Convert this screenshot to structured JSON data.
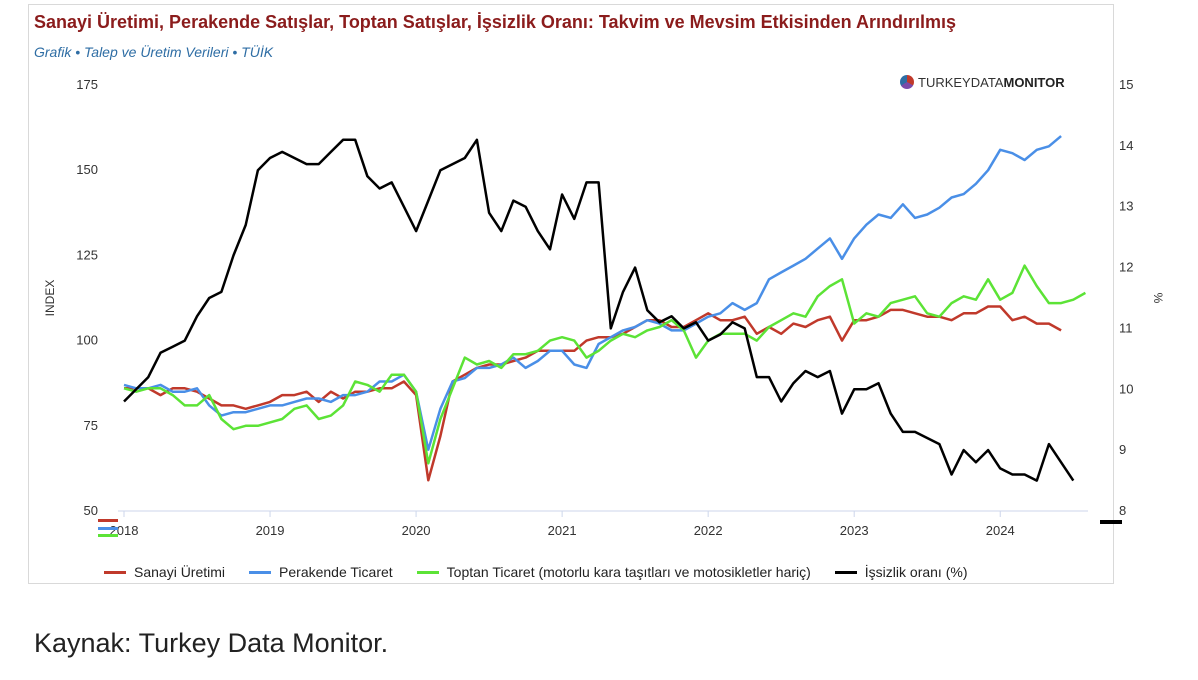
{
  "header": {
    "title": "Sanayi Üretimi, Perakende Satışlar, Toptan Satışlar, İşsizlik Oranı: Takvim ve Mevsim Etkisinden Arındırılmış",
    "subtitle": "Grafik • Talep ve Üretim Verileri • TÜİK"
  },
  "brand": {
    "part1": "TURKEYDATA",
    "part2": "MONITOR",
    "icon": "globe-logo-icon"
  },
  "source": "Kaynak: Turkey Data Monitor.",
  "chart_data": {
    "type": "line",
    "ylabel": "INDEX",
    "ylabel_right": "%",
    "ylim": [
      50,
      175
    ],
    "ylim_right": [
      8,
      15
    ],
    "yticks": [
      "175",
      "150",
      "125",
      "100",
      "75",
      "50"
    ],
    "yticks_right": [
      "15",
      "14",
      "13",
      "12",
      "11",
      "10",
      "9",
      "8"
    ],
    "xticks": [
      "2018",
      "2019",
      "2020",
      "2021",
      "2022",
      "2023",
      "2024"
    ],
    "x_start": "2018-01",
    "legend_position": "bottom",
    "grid": false,
    "series": [
      {
        "name": "Sanayi Üretimi",
        "axis": "left",
        "color": "#c0392b",
        "values": [
          86,
          86,
          86,
          84,
          86,
          86,
          85,
          83,
          81,
          81,
          80,
          81,
          82,
          84,
          84,
          85,
          82,
          85,
          83,
          85,
          85,
          86,
          86,
          88,
          84,
          59,
          72,
          88,
          90,
          92,
          93,
          93,
          94,
          95,
          97,
          97,
          97,
          97,
          100,
          101,
          101,
          102,
          104,
          106,
          106,
          104,
          104,
          106,
          108,
          106,
          106,
          107,
          102,
          104,
          102,
          105,
          104,
          106,
          107,
          100,
          106,
          106,
          107,
          109,
          109,
          108,
          107,
          107,
          106,
          108,
          108,
          110,
          110,
          106,
          107,
          105,
          105,
          103
        ]
      },
      {
        "name": "Perakende Ticaret",
        "axis": "left",
        "color": "#4a8fe7",
        "values": [
          87,
          86,
          86,
          87,
          85,
          85,
          86,
          81,
          78,
          79,
          79,
          80,
          81,
          81,
          82,
          83,
          83,
          82,
          84,
          84,
          85,
          88,
          88,
          90,
          85,
          68,
          80,
          88,
          89,
          92,
          92,
          93,
          95,
          92,
          94,
          97,
          97,
          93,
          92,
          99,
          101,
          103,
          104,
          106,
          105,
          103,
          103,
          105,
          107,
          108,
          111,
          109,
          111,
          118,
          120,
          122,
          124,
          127,
          130,
          124,
          130,
          134,
          137,
          136,
          140,
          136,
          137,
          139,
          142,
          143,
          146,
          150,
          156,
          155,
          153,
          156,
          157,
          160
        ]
      },
      {
        "name": "Toptan Ticaret (motorlu kara taşıtları ve motosikletler hariç)",
        "axis": "left",
        "color": "#5ce336",
        "values": [
          86,
          85,
          86,
          86,
          84,
          81,
          81,
          84,
          77,
          74,
          75,
          75,
          76,
          77,
          80,
          81,
          77,
          78,
          81,
          88,
          87,
          85,
          90,
          90,
          85,
          64,
          77,
          86,
          95,
          93,
          94,
          92,
          96,
          96,
          97,
          100,
          101,
          100,
          95,
          97,
          100,
          102,
          101,
          103,
          104,
          106,
          103,
          95,
          100,
          102,
          102,
          102,
          100,
          104,
          106,
          108,
          107,
          113,
          116,
          118,
          105,
          108,
          107,
          111,
          112,
          113,
          108,
          107,
          111,
          113,
          112,
          118,
          112,
          114,
          122,
          116,
          111,
          111,
          112,
          114
        ]
      },
      {
        "name": "İşsizlik oranı (%)",
        "axis": "right",
        "color": "#000000",
        "values": [
          9.8,
          10.0,
          10.2,
          10.6,
          10.7,
          10.8,
          11.2,
          11.5,
          11.6,
          12.2,
          12.7,
          13.6,
          13.8,
          13.9,
          13.8,
          13.7,
          13.7,
          13.9,
          14.1,
          14.1,
          13.5,
          13.3,
          13.4,
          13.0,
          12.6,
          13.1,
          13.6,
          13.7,
          13.8,
          14.1,
          12.9,
          12.6,
          13.1,
          13.0,
          12.6,
          12.3,
          13.2,
          12.8,
          13.4,
          13.4,
          11.0,
          11.6,
          12.0,
          11.3,
          11.1,
          11.2,
          11.0,
          11.1,
          10.8,
          10.9,
          11.1,
          11.0,
          10.2,
          10.2,
          9.8,
          10.1,
          10.3,
          10.2,
          10.3,
          9.6,
          10.0,
          10.0,
          10.1,
          9.6,
          9.3,
          9.3,
          9.2,
          9.1,
          8.6,
          9.0,
          8.8,
          9.0,
          8.7,
          8.6,
          8.6,
          8.5,
          9.1,
          8.8,
          8.5
        ]
      }
    ]
  }
}
